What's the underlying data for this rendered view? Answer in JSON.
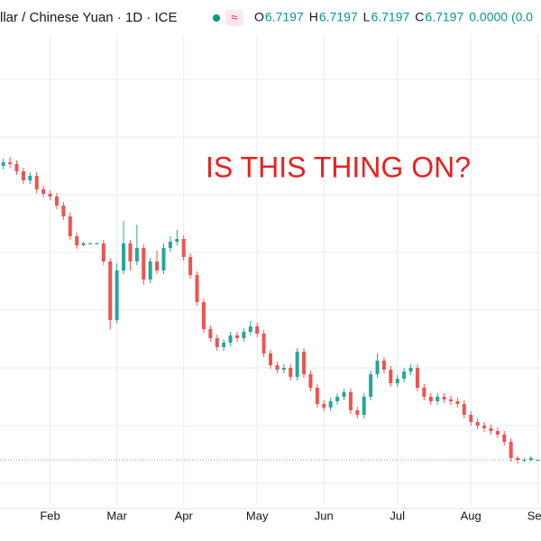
{
  "header": {
    "symbol": "llar / Chinese Yuan · 1D · ICE",
    "fields": [
      {
        "label": "O",
        "value": "6.7197"
      },
      {
        "label": "H",
        "value": "6.7197"
      },
      {
        "label": "L",
        "value": "6.7197"
      },
      {
        "label": "C",
        "value": "6.7197"
      }
    ],
    "change": "0.0000 (0.0"
  },
  "chart_data": {
    "type": "candlestick",
    "annotation": "IS THIS THING ON?",
    "up_color": "#26a69a",
    "down_color": "#ef5350",
    "annotation_color": "#e8211f",
    "ylim": [
      6.6697,
      7.2297
    ],
    "xlim": [
      -0.5,
      80.5
    ],
    "xticks": [
      {
        "value": 7,
        "label": "Feb"
      },
      {
        "value": 17,
        "label": "Mar"
      },
      {
        "value": 27,
        "label": "Apr"
      },
      {
        "value": 38,
        "label": "May"
      },
      {
        "value": 48,
        "label": "Jun"
      },
      {
        "value": 59,
        "label": "Jul"
      },
      {
        "value": 70,
        "label": "Aug"
      },
      {
        "value": 80,
        "label": "Sep"
      }
    ],
    "grid": true,
    "open": [
      7.0457,
      7.0497,
      7.0477,
      7.0397,
      7.0297,
      7.0347,
      7.0197,
      7.0147,
      7.0117,
      7.0017,
      6.9897,
      6.9677,
      6.9577,
      6.9597,
      6.9597,
      6.9597,
      6.9397,
      6.8747,
      6.9297,
      6.9597,
      6.9397,
      6.9547,
      6.9197,
      6.9397,
      6.9297,
      6.9547,
      6.9617,
      6.9647,
      6.9447,
      6.9247,
      6.8947,
      6.8647,
      6.8547,
      6.8447,
      6.8497,
      6.8577,
      6.8547,
      6.8617,
      6.8677,
      6.8597,
      6.8377,
      6.8247,
      6.8197,
      6.8217,
      6.8117,
      6.8397,
      6.8147,
      6.7997,
      6.7817,
      6.7777,
      6.7847,
      6.7897,
      6.7947,
      6.7747,
      6.7697,
      6.7897,
      6.8147,
      6.8297,
      6.8197,
      6.8047,
      6.8097,
      6.8177,
      6.8217,
      6.7997,
      6.7897,
      6.7847,
      6.7897,
      6.7867,
      6.7847,
      6.7817,
      6.7697,
      6.7617,
      6.7577,
      6.7547,
      6.7517,
      6.7477,
      6.7397,
      6.7217,
      6.7197,
      6.7197,
      6.7197
    ],
    "high": [
      7.0537,
      7.0557,
      7.0517,
      7.0437,
      7.0387,
      7.0387,
      7.0237,
      7.0187,
      7.0157,
      7.0057,
      6.9937,
      6.9717,
      6.9617,
      6.9607,
      6.9607,
      6.9637,
      6.9437,
      6.9377,
      6.9847,
      6.9637,
      6.9807,
      6.9587,
      6.9437,
      6.9517,
      6.9597,
      6.9677,
      6.9747,
      6.9687,
      6.9487,
      6.9287,
      6.8987,
      6.8687,
      6.8587,
      6.8537,
      6.8617,
      6.8617,
      6.8657,
      6.8737,
      6.8717,
      6.8637,
      6.8417,
      6.8287,
      6.8257,
      6.8257,
      6.8437,
      6.8437,
      6.8187,
      6.8037,
      6.7857,
      6.7887,
      6.7937,
      6.7987,
      6.7987,
      6.7787,
      6.7937,
      6.8187,
      6.8377,
      6.8337,
      6.8237,
      6.8137,
      6.8217,
      6.8257,
      6.8257,
      6.8037,
      6.7937,
      6.7937,
      6.7937,
      6.7907,
      6.7887,
      6.7857,
      6.7737,
      6.7657,
      6.7617,
      6.7587,
      6.7557,
      6.7517,
      6.7437,
      6.7237,
      6.7217,
      6.7237,
      6.7197
    ],
    "low": [
      7.0417,
      7.0437,
      7.0357,
      7.0257,
      7.0257,
      7.0157,
      7.0107,
      7.0077,
      6.9977,
      6.9857,
      6.9637,
      6.9537,
      6.9567,
      6.9587,
      6.9587,
      6.9357,
      6.8647,
      6.8707,
      6.9257,
      6.9297,
      6.9357,
      6.9137,
      6.9157,
      6.9257,
      6.9257,
      6.9507,
      6.9577,
      6.9407,
      6.9207,
      6.8907,
      6.8607,
      6.8507,
      6.8407,
      6.8407,
      6.8457,
      6.8507,
      6.8507,
      6.8577,
      6.8557,
      6.8337,
      6.8207,
      6.8157,
      6.8157,
      6.8077,
      6.8077,
      6.8107,
      6.7957,
      6.7777,
      6.7737,
      6.7737,
      6.7807,
      6.7857,
      6.7707,
      6.7657,
      6.7657,
      6.7857,
      6.8107,
      6.8157,
      6.8007,
      6.8007,
      6.8057,
      6.8137,
      6.7957,
      6.7857,
      6.7807,
      6.7807,
      6.7827,
      6.7807,
      6.7777,
      6.7657,
      6.7577,
      6.7537,
      6.7507,
      6.7477,
      6.7437,
      6.7357,
      6.7177,
      6.7157,
      6.7177,
      6.7177,
      6.7197
    ],
    "close": [
      7.0497,
      7.0477,
      7.0397,
      7.0297,
      7.0347,
      7.0197,
      7.0147,
      7.0117,
      7.0017,
      6.9897,
      6.9677,
      6.9577,
      6.9597,
      6.9597,
      6.9597,
      6.9397,
      6.8747,
      6.9297,
      6.9597,
      6.9397,
      6.9547,
      6.9197,
      6.9397,
      6.9297,
      6.9547,
      6.9617,
      6.9647,
      6.9447,
      6.9247,
      6.8947,
      6.8647,
      6.8547,
      6.8447,
      6.8497,
      6.8577,
      6.8547,
      6.8617,
      6.8677,
      6.8597,
      6.8377,
      6.8247,
      6.8197,
      6.8217,
      6.8117,
      6.8397,
      6.8147,
      6.7997,
      6.7817,
      6.7777,
      6.7847,
      6.7897,
      6.7947,
      6.7747,
      6.7697,
      6.7897,
      6.8147,
      6.8297,
      6.8197,
      6.8047,
      6.8097,
      6.8177,
      6.8217,
      6.7997,
      6.7897,
      6.7847,
      6.7897,
      6.7867,
      6.7847,
      6.7817,
      6.7697,
      6.7617,
      6.7577,
      6.7547,
      6.7517,
      6.7477,
      6.7397,
      6.7217,
      6.7197,
      6.7197,
      6.7217,
      6.7197
    ]
  }
}
